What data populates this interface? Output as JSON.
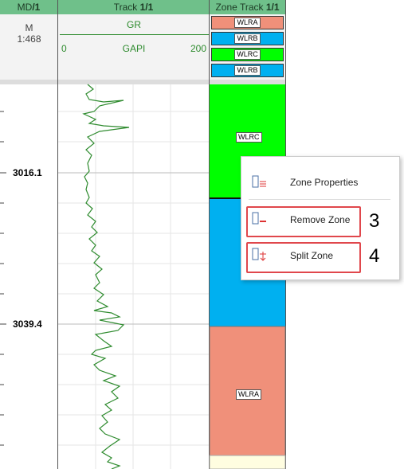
{
  "header": {
    "md": {
      "name": "MD",
      "index": "/1"
    },
    "track": {
      "name": "Track ",
      "index": "1/1"
    },
    "zone_track": {
      "name": "Zone Track ",
      "index": "1/1"
    },
    "unit": "M",
    "scale": "1:468",
    "curve": {
      "name": "GR",
      "min": "0",
      "unit": "GAPI",
      "max": "200"
    }
  },
  "zone_header": [
    "WLRA",
    "WLRB",
    "WLRC",
    "WLRB"
  ],
  "depths": [
    "3016.1",
    "3039.4"
  ],
  "zones": [
    "WLRC",
    "WLRA"
  ],
  "menu": {
    "items": [
      "Zone Properties",
      "Remove Zone",
      "Split Zone"
    ]
  },
  "annotations": [
    "3",
    "4"
  ]
}
